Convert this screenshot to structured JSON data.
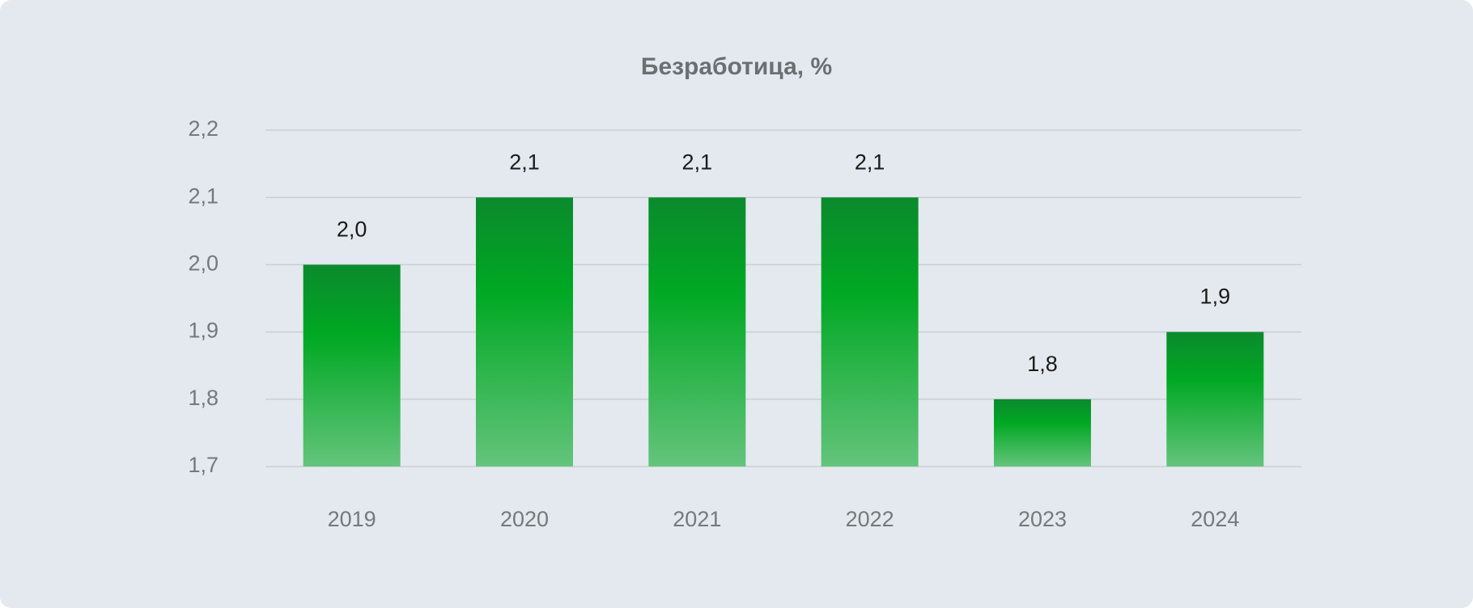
{
  "chart_data": {
    "type": "bar",
    "title": "Безработица, %",
    "categories": [
      "2019",
      "2020",
      "2021",
      "2022",
      "2023",
      "2024"
    ],
    "values": [
      2.0,
      2.1,
      2.1,
      2.1,
      1.8,
      1.9
    ],
    "value_labels": [
      "2,0",
      "2,1",
      "2,1",
      "2,1",
      "1,8",
      "1,9"
    ],
    "color": "#00a823",
    "ylim": [
      1.7,
      2.2
    ],
    "yticks": [
      {
        "value": 1.7,
        "label": "1,7"
      },
      {
        "value": 1.8,
        "label": "1,8"
      },
      {
        "value": 1.9,
        "label": "1,9"
      },
      {
        "value": 2.0,
        "label": "2,0"
      },
      {
        "value": 2.1,
        "label": "2,1"
      },
      {
        "value": 2.2,
        "label": "2,2"
      }
    ],
    "grid": true
  }
}
